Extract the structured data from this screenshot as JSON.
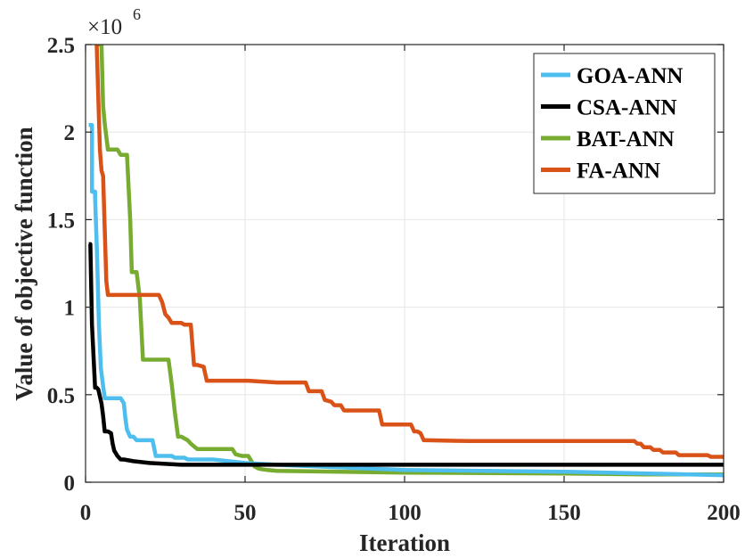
{
  "chart_data": {
    "type": "line",
    "xlabel": "Iteration",
    "ylabel": "Value of objective function",
    "exponent_label": "×10",
    "exponent_power": "6",
    "xlim": [
      0,
      200
    ],
    "ylim": [
      0,
      2.5
    ],
    "xticks": [
      0,
      50,
      100,
      150,
      200
    ],
    "xtick_labels": [
      "0",
      "50",
      "100",
      "150",
      "200"
    ],
    "yticks": [
      0,
      0.5,
      1,
      1.5,
      2,
      2.5
    ],
    "ytick_labels": [
      "0",
      "0.5",
      "1",
      "1.5",
      "2",
      "2.5"
    ],
    "grid": true,
    "legend_position": "top-right",
    "series": [
      {
        "name": "GOA-ANN",
        "color": "#4DBEEE",
        "x": [
          1,
          2,
          2,
          3,
          3,
          3.6,
          4.2,
          4.8,
          5.5,
          6,
          6.5,
          7,
          11,
          12,
          12.5,
          13,
          13.5,
          14,
          15,
          16,
          17,
          21,
          22,
          27,
          28,
          31,
          32,
          40,
          50,
          60,
          100,
          150,
          200
        ],
        "y": [
          2.04,
          2.04,
          1.66,
          1.66,
          1.63,
          1.3,
          0.9,
          0.65,
          0.55,
          0.48,
          0.48,
          0.48,
          0.48,
          0.45,
          0.36,
          0.3,
          0.28,
          0.26,
          0.26,
          0.24,
          0.24,
          0.24,
          0.15,
          0.15,
          0.14,
          0.14,
          0.13,
          0.13,
          0.11,
          0.1,
          0.07,
          0.06,
          0.04
        ]
      },
      {
        "name": "CSA-ANN",
        "color": "#000000",
        "x": [
          1,
          1.5,
          2,
          3,
          3.5,
          4,
          5,
          5.5,
          6,
          7,
          8,
          8.5,
          9,
          10,
          11,
          12,
          15,
          20,
          25,
          30,
          40,
          60,
          100,
          150,
          200
        ],
        "y": [
          1.36,
          1.36,
          0.9,
          0.54,
          0.54,
          0.53,
          0.45,
          0.38,
          0.29,
          0.29,
          0.28,
          0.22,
          0.18,
          0.15,
          0.13,
          0.13,
          0.12,
          0.11,
          0.105,
          0.1,
          0.1,
          0.1,
          0.1,
          0.1,
          0.1
        ]
      },
      {
        "name": "BAT-ANN",
        "color": "#77AC30",
        "x": [
          4,
          5,
          5.5,
          6,
          7,
          10,
          11,
          13,
          14,
          14.5,
          15,
          16,
          17,
          18,
          19,
          26,
          27,
          28,
          29,
          30,
          31,
          32,
          33,
          35,
          46,
          47,
          49,
          51,
          52,
          53,
          54,
          55,
          57,
          60,
          80,
          100,
          150,
          175,
          200
        ],
        "y": [
          2.5,
          2.5,
          2.15,
          2.05,
          1.9,
          1.9,
          1.87,
          1.87,
          1.5,
          1.2,
          1.2,
          1.2,
          1.05,
          0.7,
          0.7,
          0.7,
          0.56,
          0.4,
          0.26,
          0.26,
          0.25,
          0.24,
          0.22,
          0.19,
          0.19,
          0.16,
          0.15,
          0.15,
          0.12,
          0.09,
          0.08,
          0.075,
          0.07,
          0.065,
          0.06,
          0.055,
          0.05,
          0.045,
          0.045
        ]
      },
      {
        "name": "FA-ANN",
        "color": "#D95319",
        "x": [
          3,
          3.5,
          4,
          4.5,
          5,
          5.5,
          6,
          6.5,
          7,
          8,
          10,
          23,
          24,
          25,
          26,
          27,
          30,
          31,
          33,
          34,
          35,
          37,
          38,
          50,
          51,
          60,
          61,
          69,
          70,
          74,
          75,
          77,
          78,
          80,
          81,
          92,
          93,
          102,
          103,
          104,
          105,
          106,
          107,
          120,
          160,
          172,
          173,
          174,
          175,
          177,
          178,
          180,
          181,
          185,
          186,
          195,
          196,
          200
        ],
        "y": [
          2.5,
          2.5,
          2.2,
          1.9,
          1.78,
          1.75,
          1.45,
          1.15,
          1.07,
          1.07,
          1.07,
          1.07,
          1.03,
          0.96,
          0.94,
          0.91,
          0.91,
          0.9,
          0.9,
          0.67,
          0.67,
          0.66,
          0.58,
          0.58,
          0.58,
          0.57,
          0.57,
          0.57,
          0.52,
          0.52,
          0.47,
          0.46,
          0.44,
          0.44,
          0.41,
          0.41,
          0.33,
          0.33,
          0.29,
          0.29,
          0.28,
          0.24,
          0.24,
          0.235,
          0.235,
          0.235,
          0.22,
          0.22,
          0.2,
          0.2,
          0.185,
          0.185,
          0.17,
          0.17,
          0.155,
          0.155,
          0.145,
          0.145
        ]
      }
    ]
  }
}
